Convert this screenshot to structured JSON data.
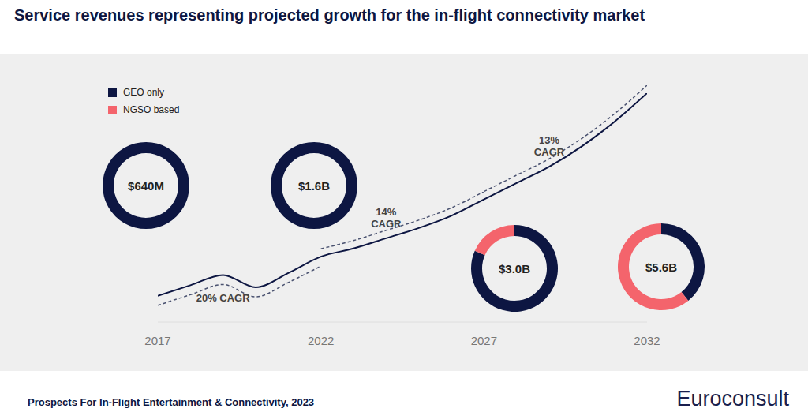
{
  "chart_data": [
    {
      "type": "line",
      "title": "Service revenues representing projected growth for the in-flight connectivity market",
      "x": [
        2017,
        2018,
        2019,
        2020,
        2021,
        2022,
        2023,
        2024,
        2025,
        2026,
        2027,
        2028,
        2029,
        2030,
        2031,
        2032
      ],
      "values": [
        0.64,
        0.9,
        1.15,
        0.85,
        1.2,
        1.6,
        1.8,
        2.05,
        2.3,
        2.6,
        3.0,
        3.4,
        3.8,
        4.3,
        4.9,
        5.6
      ],
      "color": "#0d1642",
      "line_style": "solid",
      "xlim": [
        2017,
        2032
      ],
      "xticks": [
        2017,
        2022,
        2027,
        2032
      ],
      "tick_labels": "x",
      "annotations": [
        {
          "text": "20% CAGR",
          "from": 2017,
          "to": 2022
        },
        {
          "text": "14% CAGR",
          "from": 2022,
          "to": 2027
        },
        {
          "text": "13% CAGR",
          "from": 2027,
          "to": 2032
        }
      ]
    },
    {
      "type": "pie",
      "series": [
        {
          "name": "GEO only",
          "color": "#0d1642",
          "values": [
            0.64,
            1.6,
            2.45,
            2.2
          ]
        },
        {
          "name": "NGSO based",
          "color": "#f4646c",
          "values": [
            0,
            0,
            0.55,
            3.4
          ]
        }
      ],
      "value_labels": [
        "$640M",
        "$1.6B",
        "$3.0B",
        "$5.6B"
      ],
      "legend": "top-left"
    }
  ],
  "footer": {
    "source": "Prospects For In-Flight Entertainment & Connectivity, 2023",
    "logo": "Euroconsult"
  }
}
